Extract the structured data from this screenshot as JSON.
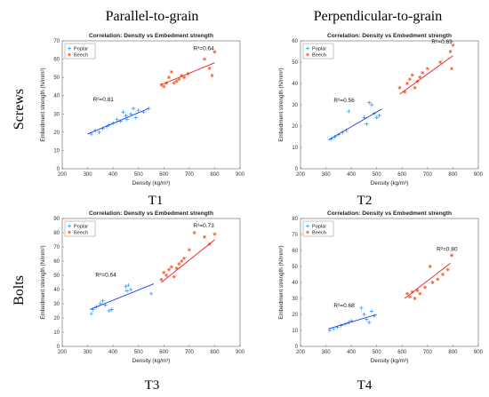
{
  "column_headers": [
    "Parallel-to-grain",
    "Perpendicular-to-grain"
  ],
  "row_headers": [
    "Screws",
    "Bolts"
  ],
  "colors": {
    "poplar": "#1f8fff",
    "beech": "#f2622a",
    "poplar_fit": "#1f3fd8",
    "beech_fit": "#e8202a"
  },
  "chart_data": [
    {
      "type": "scatter",
      "panel": "T1",
      "title": "Correlation: Density vs Embedment strength",
      "xlabel": "Density (kg/m³)",
      "ylabel": "Embedment strength (N/mm²)",
      "xlim": [
        200,
        900
      ],
      "ylim": [
        0,
        70
      ],
      "xticks": [
        200,
        300,
        400,
        500,
        600,
        700,
        800,
        900
      ],
      "yticks": [
        0,
        10,
        20,
        30,
        40,
        50,
        60,
        70
      ],
      "legend": "top-left",
      "series": [
        {
          "name": "Poplar",
          "marker": "+",
          "points": [
            [
              315,
              19
            ],
            [
              330,
              21
            ],
            [
              345,
              20
            ],
            [
              360,
              22
            ],
            [
              375,
              23
            ],
            [
              385,
              24
            ],
            [
              400,
              25
            ],
            [
              415,
              27
            ],
            [
              430,
              26
            ],
            [
              440,
              31
            ],
            [
              450,
              29
            ],
            [
              455,
              27
            ],
            [
              470,
              30
            ],
            [
              480,
              33
            ],
            [
              490,
              28
            ],
            [
              500,
              32
            ],
            [
              520,
              31
            ],
            [
              540,
              33
            ]
          ],
          "fit": {
            "x": [
              300,
              540
            ],
            "y": [
              19,
              33
            ],
            "r2_label": "R²=0.81"
          }
        },
        {
          "name": "Beech",
          "marker": "*",
          "points": [
            [
              590,
              46
            ],
            [
              600,
              45
            ],
            [
              610,
              47
            ],
            [
              620,
              50
            ],
            [
              630,
              53
            ],
            [
              640,
              47
            ],
            [
              650,
              48
            ],
            [
              660,
              49
            ],
            [
              670,
              51
            ],
            [
              680,
              50
            ],
            [
              695,
              52
            ],
            [
              760,
              60
            ],
            [
              780,
              55
            ],
            [
              790,
              51
            ],
            [
              800,
              64
            ]
          ],
          "fit": {
            "x": [
              590,
              800
            ],
            "y": [
              46,
              58
            ],
            "r2_label": "R²=0.64"
          }
        }
      ]
    },
    {
      "type": "scatter",
      "panel": "T2",
      "title": "Correlation: Density vs Embedment strength",
      "xlabel": "Density (kg/m³)",
      "ylabel": "Embedment strength (N/mm²)",
      "xlim": [
        200,
        900
      ],
      "ylim": [
        0,
        60
      ],
      "xticks": [
        200,
        300,
        400,
        500,
        600,
        700,
        800,
        900
      ],
      "yticks": [
        0,
        10,
        20,
        30,
        40,
        50,
        60
      ],
      "legend": "top-left",
      "series": [
        {
          "name": "Poplar",
          "marker": "+",
          "points": [
            [
              320,
              14
            ],
            [
              335,
              15
            ],
            [
              350,
              16
            ],
            [
              365,
              17
            ],
            [
              380,
              18
            ],
            [
              390,
              27
            ],
            [
              450,
              24
            ],
            [
              460,
              21
            ],
            [
              470,
              31
            ],
            [
              480,
              30
            ],
            [
              490,
              26
            ],
            [
              500,
              24
            ],
            [
              510,
              25
            ]
          ],
          "fit": {
            "x": [
              310,
              520
            ],
            "y": [
              13.5,
              28
            ],
            "r2_label": "R²=0.56"
          }
        },
        {
          "name": "Beech",
          "marker": "*",
          "points": [
            [
              590,
              38
            ],
            [
              610,
              36
            ],
            [
              620,
              40
            ],
            [
              630,
              42
            ],
            [
              640,
              44
            ],
            [
              650,
              38
            ],
            [
              660,
              41
            ],
            [
              670,
              43
            ],
            [
              680,
              45
            ],
            [
              700,
              47
            ],
            [
              750,
              50
            ],
            [
              790,
              55
            ],
            [
              800,
              58
            ],
            [
              795,
              47
            ]
          ],
          "fit": {
            "x": [
              590,
              800
            ],
            "y": [
              35,
              53
            ],
            "r2_label": "R²=0.69"
          }
        }
      ]
    },
    {
      "type": "scatter",
      "panel": "T3",
      "title": "Correlation: Density vs Embedment strength",
      "xlabel": "Density (kg/m³)",
      "ylabel": "Embedment strength (N/mm²)",
      "xlim": [
        200,
        900
      ],
      "ylim": [
        0,
        90
      ],
      "xticks": [
        200,
        300,
        400,
        500,
        600,
        700,
        800,
        900
      ],
      "yticks": [
        0,
        10,
        20,
        30,
        40,
        50,
        60,
        70,
        80,
        90
      ],
      "legend": "top-left",
      "series": [
        {
          "name": "Poplar",
          "marker": "+",
          "points": [
            [
              315,
              23
            ],
            [
              320,
              26
            ],
            [
              335,
              28
            ],
            [
              350,
              30
            ],
            [
              360,
              32
            ],
            [
              370,
              29
            ],
            [
              385,
              25
            ],
            [
              395,
              26
            ],
            [
              450,
              42
            ],
            [
              455,
              39
            ],
            [
              460,
              43
            ],
            [
              470,
              40
            ],
            [
              550,
              37
            ]
          ],
          "fit": {
            "x": [
              310,
              560
            ],
            "y": [
              26,
              44
            ],
            "r2_label": "R²=0.64"
          }
        },
        {
          "name": "Beech",
          "marker": "*",
          "points": [
            [
              590,
              47
            ],
            [
              600,
              52
            ],
            [
              610,
              50
            ],
            [
              620,
              54
            ],
            [
              630,
              56
            ],
            [
              640,
              49
            ],
            [
              650,
              55
            ],
            [
              660,
              58
            ],
            [
              670,
              60
            ],
            [
              680,
              62
            ],
            [
              700,
              68
            ],
            [
              720,
              80
            ],
            [
              760,
              77
            ],
            [
              780,
              72
            ],
            [
              800,
              79
            ]
          ],
          "fit": {
            "x": [
              590,
              800
            ],
            "y": [
              45,
              75
            ],
            "r2_label": "R²=0.73"
          }
        }
      ]
    },
    {
      "type": "scatter",
      "panel": "T4",
      "title": "Correlation: Density vs Embedment strength",
      "xlabel": "Density (kg/m³)",
      "ylabel": "Embedment strength (N/mm²)",
      "xlim": [
        200,
        900
      ],
      "ylim": [
        0,
        80
      ],
      "xticks": [
        200,
        300,
        400,
        500,
        600,
        700,
        800,
        900
      ],
      "yticks": [
        0,
        10,
        20,
        30,
        40,
        50,
        60,
        70,
        80
      ],
      "legend": "top-left",
      "series": [
        {
          "name": "Poplar",
          "marker": "+",
          "points": [
            [
              315,
              10
            ],
            [
              330,
              11
            ],
            [
              345,
              12
            ],
            [
              360,
              13
            ],
            [
              375,
              14
            ],
            [
              390,
              15
            ],
            [
              400,
              16
            ],
            [
              440,
              24
            ],
            [
              450,
              20
            ],
            [
              460,
              17
            ],
            [
              470,
              15
            ],
            [
              480,
              22
            ],
            [
              490,
              19
            ]
          ],
          "fit": {
            "x": [
              310,
              500
            ],
            "y": [
              11,
              20
            ],
            "r2_label": "R²=0.68"
          }
        },
        {
          "name": "Beech",
          "marker": "*",
          "points": [
            [
              620,
              33
            ],
            [
              630,
              31
            ],
            [
              640,
              34
            ],
            [
              650,
              30
            ],
            [
              660,
              35
            ],
            [
              670,
              33
            ],
            [
              690,
              37
            ],
            [
              710,
              50
            ],
            [
              720,
              40
            ],
            [
              740,
              42
            ],
            [
              760,
              45
            ],
            [
              780,
              48
            ],
            [
              795,
              57
            ]
          ],
          "fit": {
            "x": [
              610,
              790
            ],
            "y": [
              30,
              52
            ],
            "r2_label": "R²=0.80"
          }
        }
      ]
    }
  ]
}
